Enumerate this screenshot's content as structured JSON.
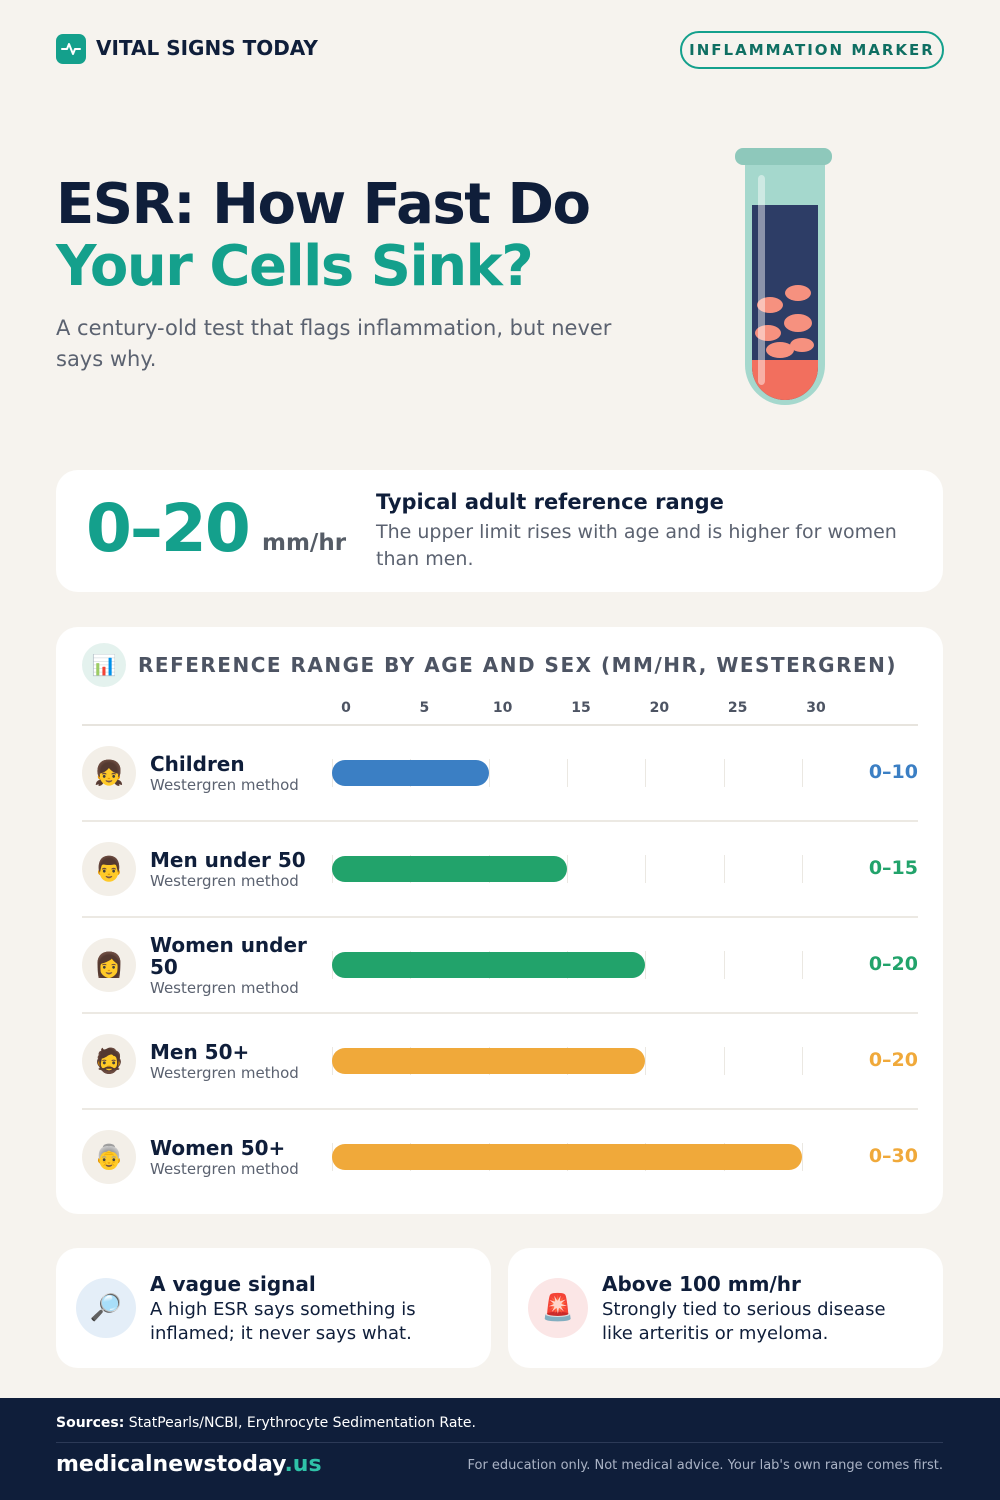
{
  "header": {
    "brand": "VITAL SIGNS TODAY",
    "badge": "INFLAMMATION MARKER"
  },
  "hero": {
    "title_line_1": "ESR: How Fast Do",
    "title_line_2": "Your Cells Sink?",
    "subtitle": "A century-old test that flags inflammation, but never says why."
  },
  "highlight": {
    "value": "0–20",
    "unit": "mm/hr",
    "title": "Typical adult reference range",
    "text": "The upper limit rises with age and is higher for women than men."
  },
  "chart_data": {
    "type": "bar",
    "orientation": "horizontal",
    "icon": "📊",
    "title": "REFERENCE RANGE BY AGE AND SEX (MM/HR, WESTERGREN)",
    "categories": [
      "Children",
      "Men under 50",
      "Women under 50",
      "Men 50+",
      "Women 50+"
    ],
    "category_icons": [
      "👧",
      "👨",
      "👩",
      "🧔",
      "👵"
    ],
    "category_notes": [
      "Westergren method",
      "Westergren method",
      "Westergren method",
      "Westergren method",
      "Westergren method"
    ],
    "values": [
      10,
      15,
      20,
      20,
      30
    ],
    "value_labels": [
      "0–10",
      "0–15",
      "0–20",
      "0–20",
      "0–30"
    ],
    "colors": [
      "#3b7fc4",
      "#22a36b",
      "#22a36b",
      "#f0a93a",
      "#f0a93a"
    ],
    "xlim": [
      0,
      30
    ],
    "xticks": [
      0,
      5,
      10,
      15,
      20,
      25,
      30
    ],
    "grid": true
  },
  "cards": [
    {
      "icon": "🔎",
      "title": "A vague signal",
      "text": "A high ESR says something is inflamed; it never says what."
    },
    {
      "icon": "🚨",
      "title": "Above 100 mm/hr",
      "text": "Strongly tied to serious disease like arteritis or myeloma."
    }
  ],
  "footer": {
    "sources_label": "Sources:",
    "sources": "StatPearls/NCBI, Erythrocyte Sedimentation Rate.",
    "domain": "medicalnewstoday",
    "tld": ".us",
    "disclaimer": "For education only. Not medical advice. Your lab's own range comes first."
  }
}
